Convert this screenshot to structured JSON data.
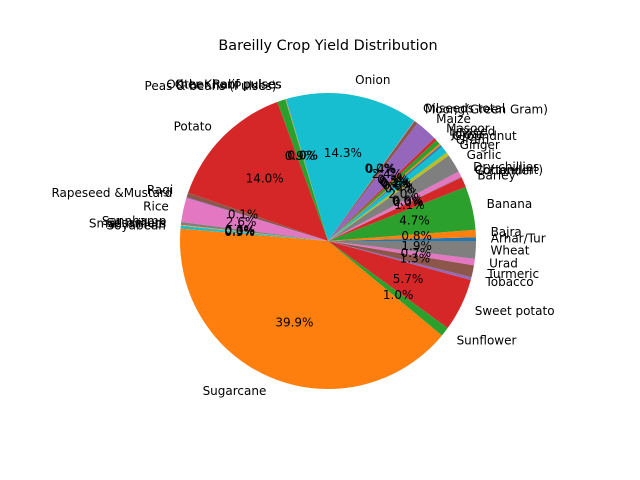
{
  "chart_data": {
    "type": "pie",
    "title": "Bareilly Crop Yield Distribution",
    "slices": [
      {
        "label": "Arhar/Tur",
        "value": 0.4,
        "pct_label": "",
        "color": "#1f77b4"
      },
      {
        "label": "Bajra",
        "value": 0.8,
        "pct_label": "0.8%",
        "color": "#ff7f0e"
      },
      {
        "label": "Banana",
        "value": 4.7,
        "pct_label": "4.7%",
        "color": "#2ca02c"
      },
      {
        "label": "Barley",
        "value": 1.1,
        "pct_label": "1.1%",
        "color": "#d62728"
      },
      {
        "label": "Coriander",
        "value": 0.05,
        "pct_label": "0.0%",
        "color": "#9467bd"
      },
      {
        "label": "Cotton(lint)",
        "value": 0.05,
        "pct_label": "0.0%",
        "color": "#8c564b"
      },
      {
        "label": "Dry chillies",
        "value": 0.6,
        "pct_label": "0.6%",
        "color": "#e377c2"
      },
      {
        "label": "Garlic",
        "value": 2.0,
        "pct_label": "2.0%",
        "color": "#7f7f7f"
      },
      {
        "label": "Ginger",
        "value": 0.4,
        "pct_label": "0.4%",
        "color": "#bcbd22"
      },
      {
        "label": "Gram",
        "value": 0.8,
        "pct_label": "0.8%",
        "color": "#17becf"
      },
      {
        "label": "Groundnut",
        "value": 0.2,
        "pct_label": "0.2%",
        "color": "#1f77b4"
      },
      {
        "label": "Jowar",
        "value": 0.2,
        "pct_label": "0.2%",
        "color": "#ff7f0e"
      },
      {
        "label": "Linseed",
        "value": 0.5,
        "pct_label": "0.5%",
        "color": "#2ca02c"
      },
      {
        "label": "Masoor",
        "value": 0.3,
        "pct_label": "0.3%",
        "color": "#d62728"
      },
      {
        "label": "Maize",
        "value": 2.4,
        "pct_label": "2.4%",
        "color": "#9467bd"
      },
      {
        "label": "Moong(Green Gram)",
        "value": 0.4,
        "pct_label": "0.4%",
        "color": "#8c564b"
      },
      {
        "label": "Oilseeds total",
        "value": 0.05,
        "pct_label": "0.0%",
        "color": "#e377c2"
      },
      {
        "label": "Onion",
        "value": 14.3,
        "pct_label": "14.3%",
        "color": "#17becf"
      },
      {
        "label": "Other Kharif pulses",
        "value": 0.05,
        "pct_label": "0.0%",
        "color": "#7f7f7f"
      },
      {
        "label": "Other Rabi pulses",
        "value": 0.05,
        "pct_label": "0.0%",
        "color": "#bcbd22"
      },
      {
        "label": "Peas & beans (Pulses)",
        "value": 0.9,
        "pct_label": "0.9%",
        "color": "#2ca02c"
      },
      {
        "label": "Potato",
        "value": 14.0,
        "pct_label": "14.0%",
        "color": "#d62728"
      },
      {
        "label": "Ragi",
        "value": 0.5,
        "pct_label": "",
        "color": "#8c564b"
      },
      {
        "label": "Rapeseed &Mustard",
        "value": 0.1,
        "pct_label": "0.1%",
        "color": "#9467bd"
      },
      {
        "label": "Rice",
        "value": 2.6,
        "pct_label": "2.6%",
        "color": "#e377c2"
      },
      {
        "label": "Sannhamp",
        "value": 0.3,
        "pct_label": "0.3%",
        "color": "#7f7f7f"
      },
      {
        "label": "Sesamum",
        "value": 0.05,
        "pct_label": "0.0%",
        "color": "#bcbd22"
      },
      {
        "label": "Small millets",
        "value": 0.05,
        "pct_label": "0.0%",
        "color": "#ff7f0e"
      },
      {
        "label": "Soyabean",
        "value": 0.3,
        "pct_label": "0.3%",
        "color": "#17becf"
      },
      {
        "label": "Sugarcane",
        "value": 39.9,
        "pct_label": "39.9%",
        "color": "#ff7f0e"
      },
      {
        "label": "Sunflower",
        "value": 1.0,
        "pct_label": "1.0%",
        "color": "#2ca02c"
      },
      {
        "label": "Sweet potato",
        "value": 5.7,
        "pct_label": "5.7%",
        "color": "#d62728"
      },
      {
        "label": "Tobacco",
        "value": 0.3,
        "pct_label": "",
        "color": "#9467bd"
      },
      {
        "label": "Turmeric",
        "value": 1.3,
        "pct_label": "1.3%",
        "color": "#8c564b"
      },
      {
        "label": "Urad",
        "value": 0.7,
        "pct_label": "0.7%",
        "color": "#e377c2"
      },
      {
        "label": "Wheat",
        "value": 1.9,
        "pct_label": "1.9%",
        "color": "#7f7f7f"
      }
    ]
  }
}
